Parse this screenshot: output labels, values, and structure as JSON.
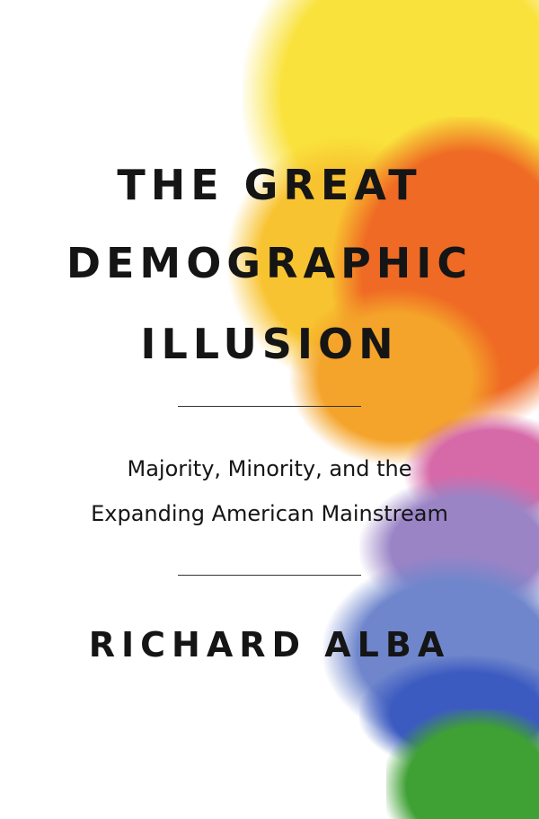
{
  "cover": {
    "title_lines": [
      "THE GREAT",
      "DEMOGRAPHIC",
      "ILLUSION"
    ],
    "subtitle_lines": [
      "Majority, Minority, and the",
      "Expanding American Mainstream"
    ],
    "author": "RICHARD ALBA",
    "colors": {
      "background": "#ffffff",
      "text": "#151515",
      "paint": [
        "#f9e13c",
        "#f7b32a",
        "#ef6a24",
        "#d66aa8",
        "#8a7fc4",
        "#4d6fc4",
        "#3fa034"
      ]
    }
  }
}
